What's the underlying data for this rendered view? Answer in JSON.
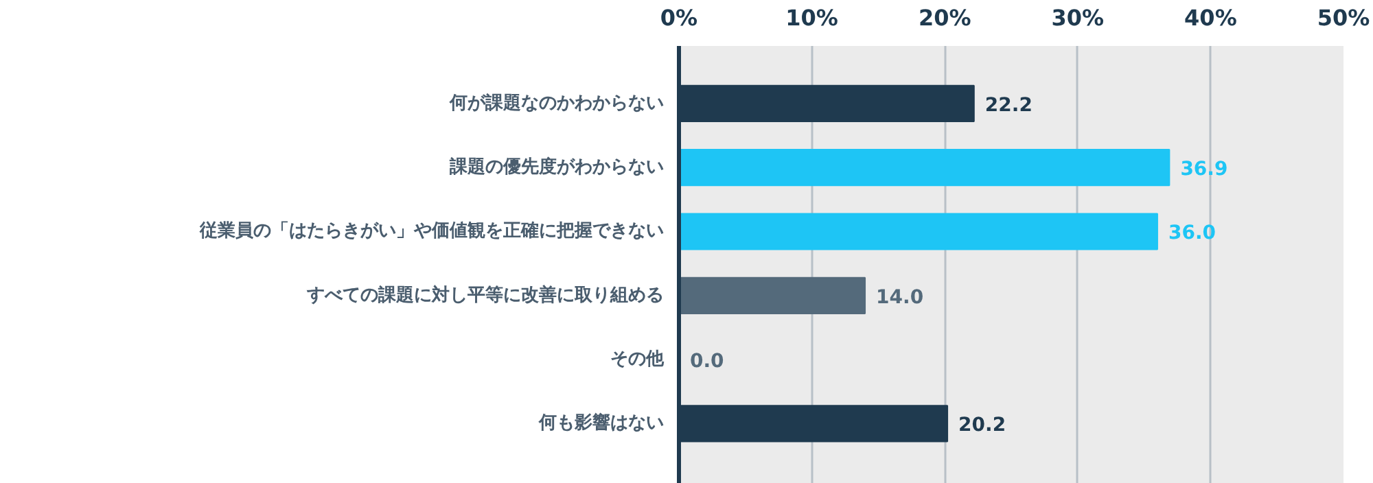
{
  "chart_data": {
    "type": "bar",
    "orientation": "horizontal",
    "categories": [
      "何が課題なのかわからない",
      "課題の優先度がわからない",
      "従業員の「はたらきがい」や価値観を正確に把握できない",
      "すべての課題に対し平等に改善に取り組める",
      "その他",
      "何も影響はない"
    ],
    "values": [
      22.2,
      36.9,
      36.0,
      14.0,
      0.0,
      20.2
    ],
    "colors": [
      "#1f3a4f",
      "#1ec5f5",
      "#1ec5f5",
      "#546a7b",
      "#546a7b",
      "#1f3a4f"
    ],
    "xlim": [
      0,
      50
    ],
    "xticks": [
      {
        "value": 0,
        "label": "0%"
      },
      {
        "value": 10,
        "label": "10%"
      },
      {
        "value": 20,
        "label": "20%"
      },
      {
        "value": 30,
        "label": "30%"
      },
      {
        "value": 40,
        "label": "40%"
      },
      {
        "value": 50,
        "label": "50%"
      }
    ],
    "value_labels": [
      "22.2",
      "36.9",
      "36.0",
      "14.0",
      "0.0",
      "20.2"
    ],
    "grid": "x"
  }
}
